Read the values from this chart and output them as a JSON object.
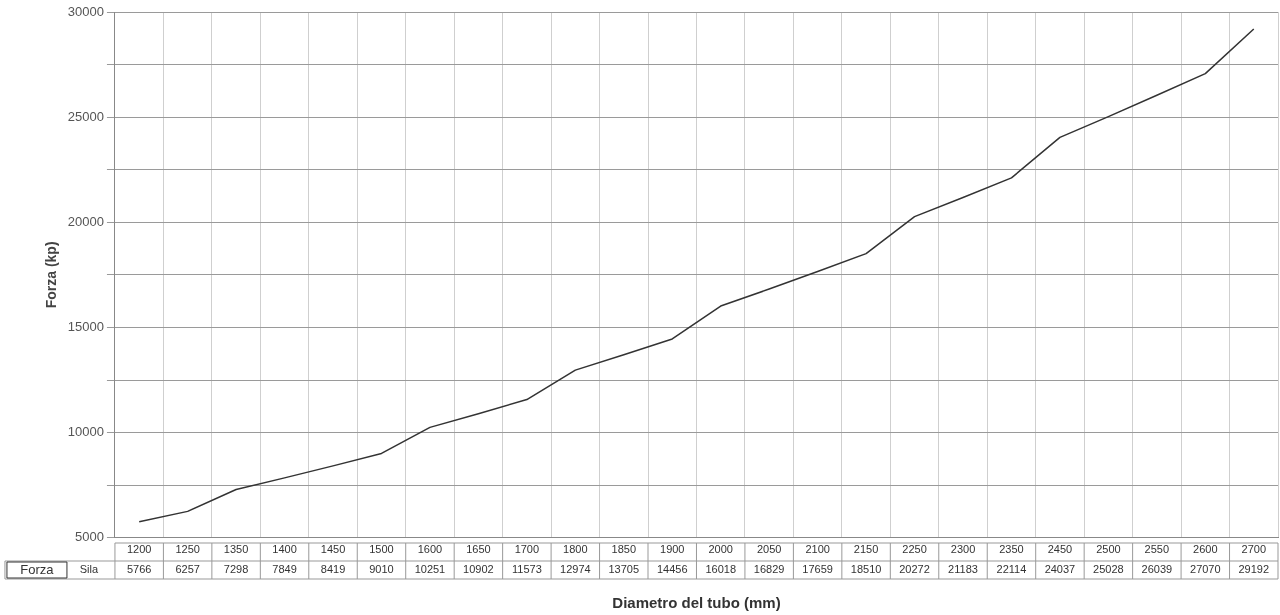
{
  "chart_data": {
    "type": "line",
    "xlabel": "Diametro del tubo (mm)",
    "ylabel": "Forza (kp)",
    "categories": [
      "1200",
      "1250",
      "1350",
      "1400",
      "1450",
      "1500",
      "1600",
      "1650",
      "1700",
      "1800",
      "1850",
      "1900",
      "2000",
      "2050",
      "2100",
      "2150",
      "2250",
      "2300",
      "2350",
      "2450",
      "2500",
      "2550",
      "2600",
      "2700"
    ],
    "series": [
      {
        "name": "Forza",
        "color": "#333333",
        "values": [
          5766,
          6257,
          7298,
          7849,
          8419,
          9010,
          10251,
          10902,
          11573,
          12974,
          13705,
          14456,
          16018,
          16829,
          17659,
          18510,
          20272,
          21183,
          22114,
          24037,
          25028,
          26039,
          27070,
          29192
        ]
      }
    ],
    "ylim": [
      5000,
      30000
    ],
    "yticks": [
      5000,
      {
        "value": 7500,
        "label": null
      },
      10000,
      {
        "value": 12500,
        "label": null
      },
      15000,
      {
        "value": 17500,
        "label": null
      },
      20000,
      {
        "value": 22500,
        "label": null
      },
      25000,
      {
        "value": 27500,
        "label": null
      },
      30000
    ],
    "grid": true,
    "marker": "none",
    "line_style": "solid",
    "data_labels": true,
    "annotations": [
      "Sila"
    ]
  }
}
